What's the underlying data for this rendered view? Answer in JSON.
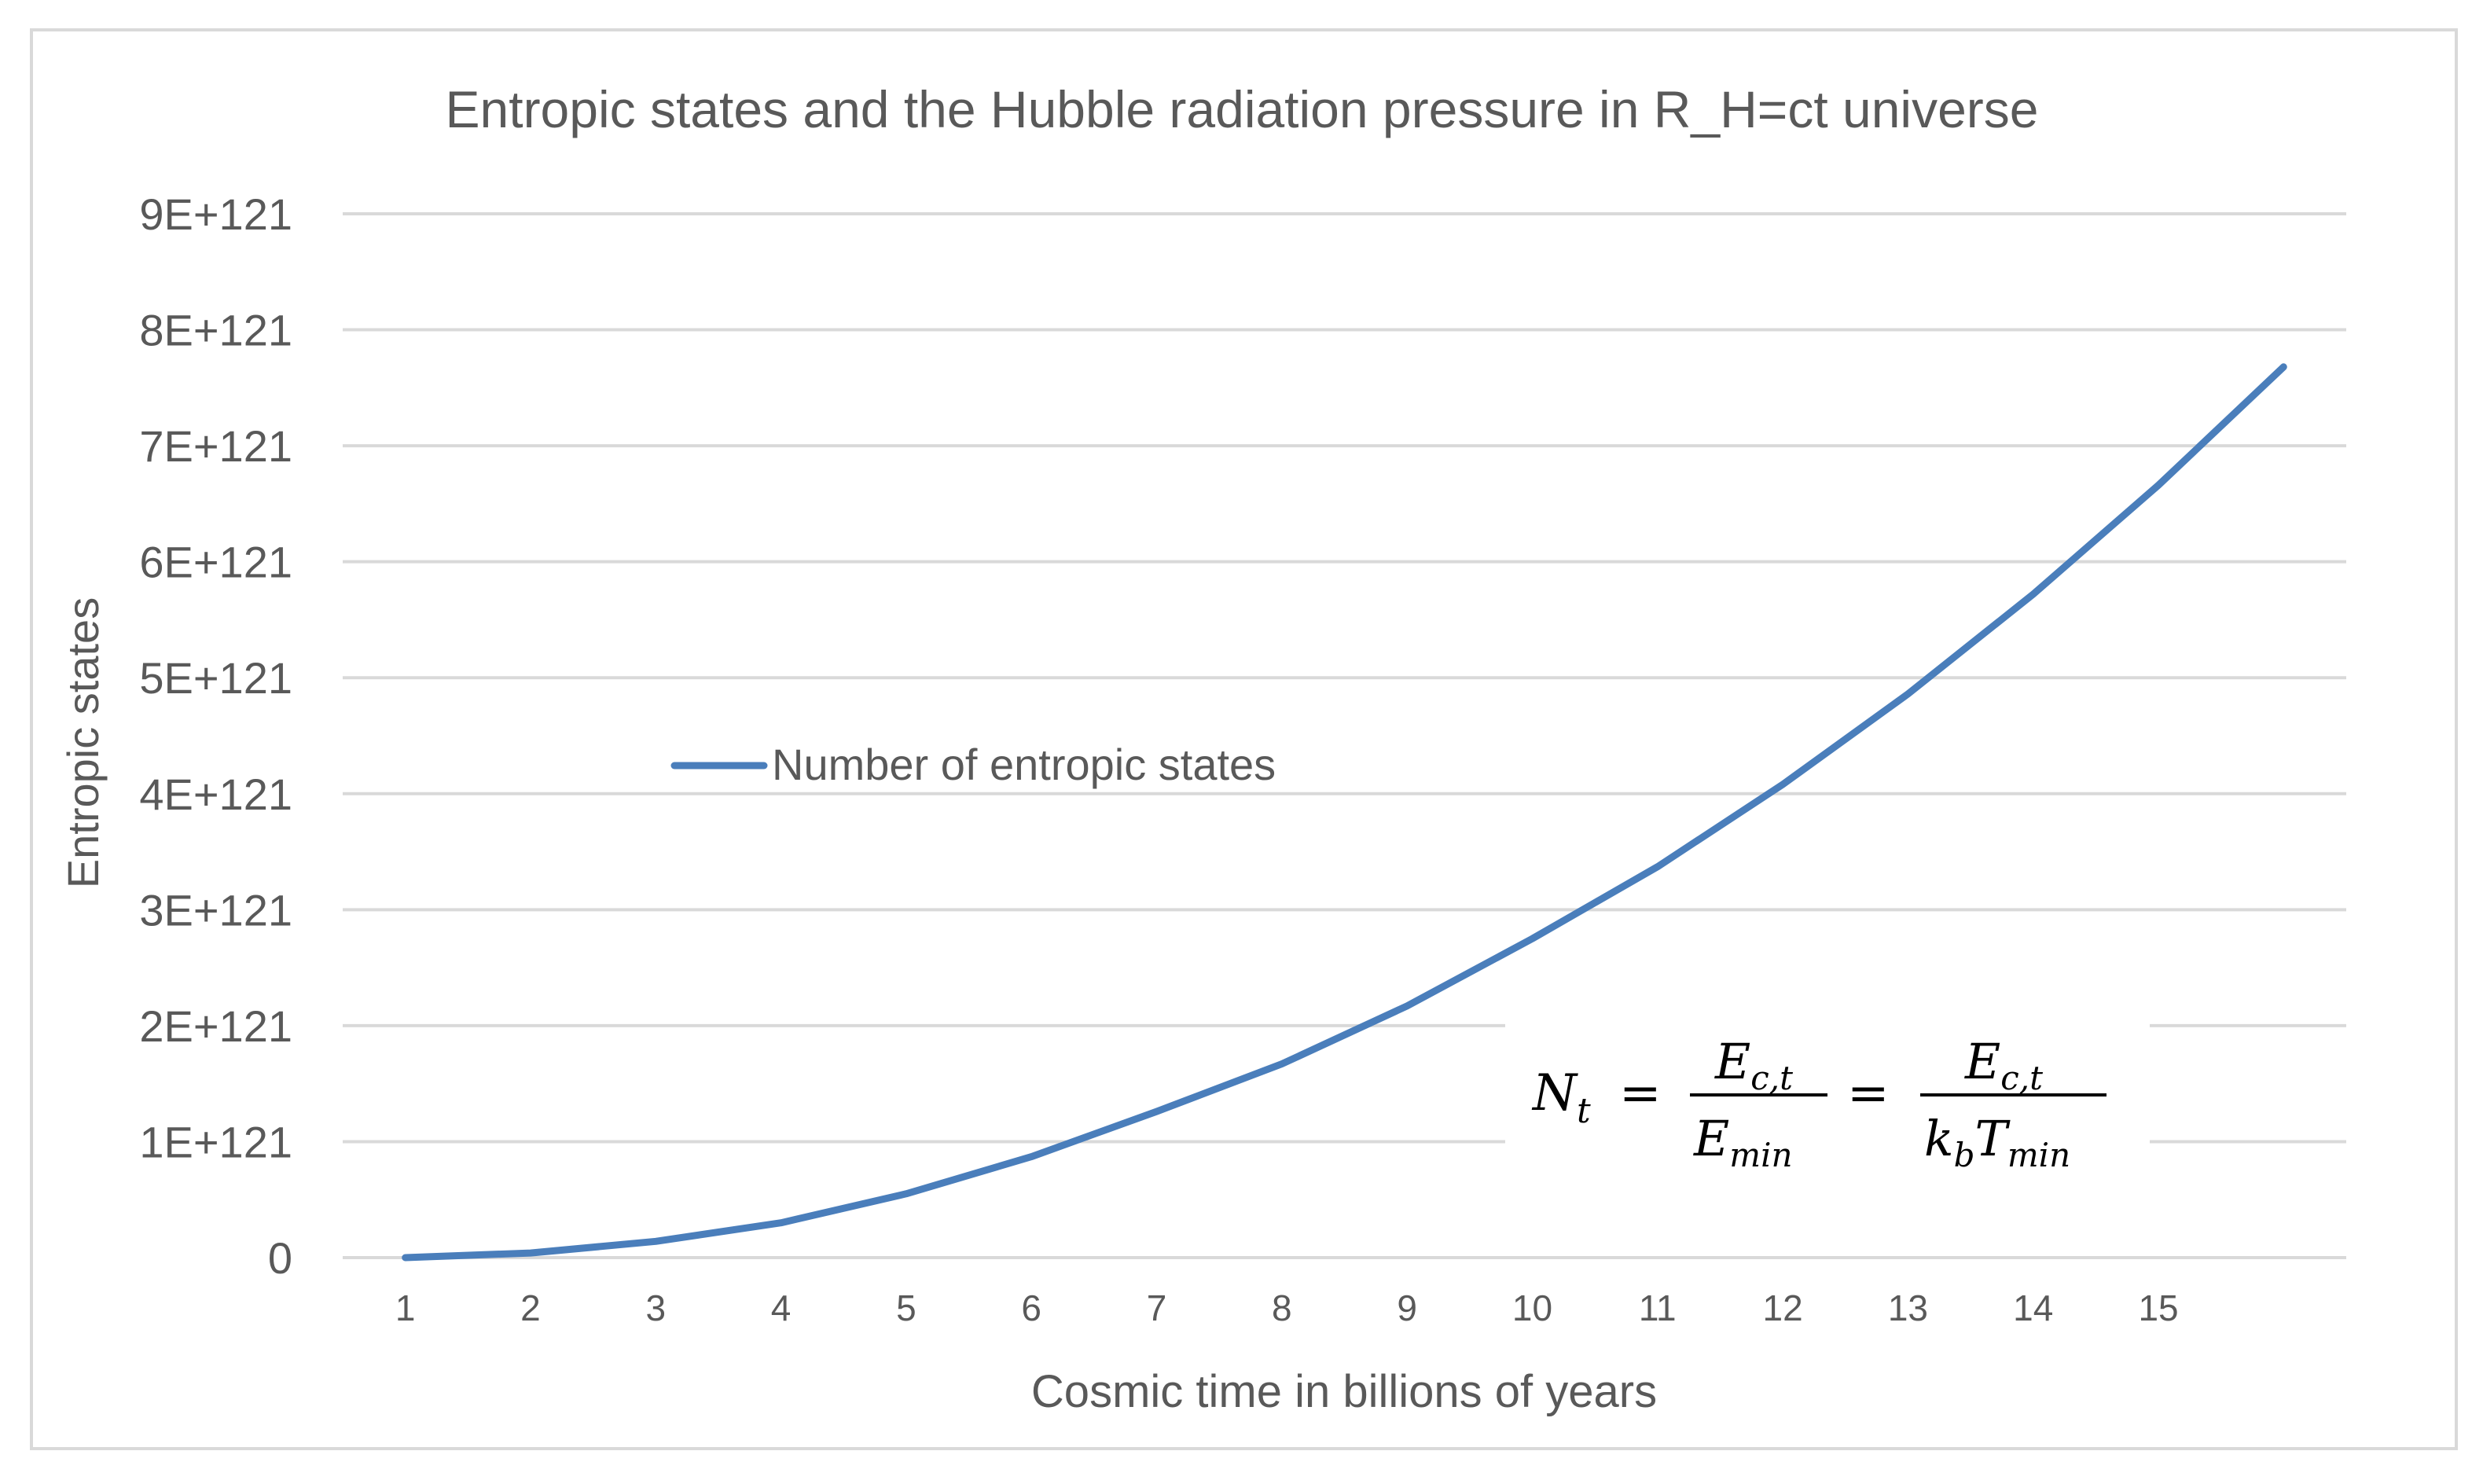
{
  "chart_data": {
    "type": "line",
    "title": "Entropic states and the Hubble radiation pressure in R_H=ct universe",
    "xlabel": "Cosmic time in billions of years",
    "ylabel": "Entropic states",
    "x_ticks": [
      "1",
      "2",
      "3",
      "4",
      "5",
      "6",
      "7",
      "8",
      "9",
      "10",
      "11",
      "12",
      "13",
      "14",
      "15"
    ],
    "y_ticks": [
      "0",
      "1E+121",
      "2E+121",
      "3E+121",
      "4E+121",
      "5E+121",
      "6E+121",
      "7E+121",
      "8E+121",
      "9E+121"
    ],
    "ylim": [
      0,
      9e+121
    ],
    "xlim": [
      0.5,
      16.5
    ],
    "grid": true,
    "legend_position": "middle-left",
    "series": [
      {
        "name": "Number of entropic states",
        "color": "#4a7ebb",
        "x": [
          1,
          2,
          3,
          4,
          5,
          6,
          7,
          8,
          9,
          10,
          11,
          12,
          13,
          14,
          15,
          16
        ],
        "values": [
          0,
          4e+119,
          1.4e+120,
          3e+120,
          5.5e+120,
          8.7e+120,
          1.26e+121,
          1.67e+121,
          2.17e+121,
          2.75e+121,
          3.37e+121,
          4.08e+121,
          4.86e+121,
          5.72e+121,
          6.66e+121,
          7.68e+121
        ]
      }
    ],
    "annotation": {
      "lhs": "N",
      "lhs_sub": "t",
      "eq": "=",
      "num1": "E",
      "num1_sub": "c,t",
      "den1": "E",
      "den1_sub": "min",
      "num2": "E",
      "num2_sub": "c,t",
      "den2_k": "k",
      "den2_k_sub": "b",
      "den2_T": "T",
      "den2_T_sub": "min"
    }
  }
}
